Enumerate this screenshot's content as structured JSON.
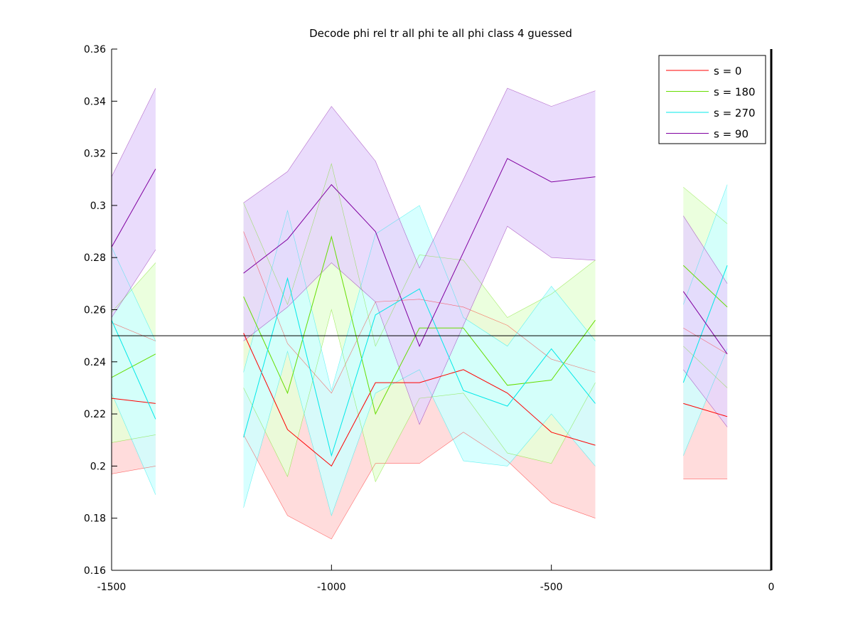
{
  "chart_data": {
    "type": "line",
    "title": "Decode phi rel tr all phi te all phi class 4 guessed",
    "xlabel": "",
    "ylabel": "",
    "xlim": [
      -1500,
      0
    ],
    "ylim": [
      0.16,
      0.36
    ],
    "x_ticks": [
      -1500,
      -1000,
      -500,
      0
    ],
    "x_tick_labels": [
      "-1500",
      "-1000",
      "-500",
      "0"
    ],
    "y_ticks": [
      0.16,
      0.18,
      0.2,
      0.22,
      0.24,
      0.26,
      0.28,
      0.3,
      0.32,
      0.34,
      0.36
    ],
    "y_tick_labels": [
      "0.16",
      "0.18",
      "0.2",
      "0.22",
      "0.24",
      "0.26",
      "0.28",
      "0.3",
      "0.32",
      "0.34",
      "0.36"
    ],
    "grid": false,
    "legend_position": "top-right",
    "reference_line": {
      "y": 0.25,
      "color": "#000000"
    },
    "right_axis_line_x": 0,
    "series": [
      {
        "name": "s = 0",
        "color": "#ff0000",
        "band_color": "#ffd6d6",
        "segments": [
          {
            "x": [
              -1500,
              -1400
            ],
            "mean": [
              0.226,
              0.224
            ],
            "lower": [
              0.197,
              0.2
            ],
            "upper": [
              0.255,
              0.248
            ]
          },
          {
            "x": [
              -1200,
              -1100,
              -1000,
              -900,
              -800,
              -700,
              -600,
              -500,
              -400
            ],
            "mean": [
              0.251,
              0.214,
              0.2,
              0.232,
              0.232,
              0.237,
              0.228,
              0.213,
              0.208
            ],
            "lower": [
              0.212,
              0.181,
              0.172,
              0.201,
              0.201,
              0.213,
              0.202,
              0.186,
              0.18
            ],
            "upper": [
              0.29,
              0.247,
              0.228,
              0.263,
              0.264,
              0.261,
              0.254,
              0.241,
              0.236
            ]
          },
          {
            "x": [
              -200,
              -100
            ],
            "mean": [
              0.224,
              0.219
            ],
            "lower": [
              0.195,
              0.195
            ],
            "upper": [
              0.253,
              0.243
            ]
          }
        ]
      },
      {
        "name": "s = 180",
        "color": "#66dd00",
        "band_color": "#e8ffd8",
        "segments": [
          {
            "x": [
              -1500,
              -1400
            ],
            "mean": [
              0.234,
              0.243
            ],
            "lower": [
              0.209,
              0.212
            ],
            "upper": [
              0.259,
              0.278
            ]
          },
          {
            "x": [
              -1200,
              -1100,
              -1000,
              -900,
              -800,
              -700,
              -600,
              -500,
              -400
            ],
            "mean": [
              0.265,
              0.228,
              0.288,
              0.22,
              0.253,
              0.253,
              0.231,
              0.233,
              0.256
            ],
            "lower": [
              0.23,
              0.196,
              0.26,
              0.194,
              0.226,
              0.228,
              0.205,
              0.201,
              0.232
            ],
            "upper": [
              0.301,
              0.262,
              0.316,
              0.246,
              0.281,
              0.279,
              0.257,
              0.266,
              0.279
            ]
          },
          {
            "x": [
              -200,
              -100
            ],
            "mean": [
              0.277,
              0.261
            ],
            "lower": [
              0.246,
              0.23
            ],
            "upper": [
              0.307,
              0.293
            ]
          }
        ]
      },
      {
        "name": "s = 270",
        "color": "#00e8e8",
        "band_color": "#d0ffff",
        "segments": [
          {
            "x": [
              -1500,
              -1400
            ],
            "mean": [
              0.256,
              0.218
            ],
            "lower": [
              0.228,
              0.189
            ],
            "upper": [
              0.284,
              0.248
            ]
          },
          {
            "x": [
              -1200,
              -1100,
              -1000,
              -900,
              -800,
              -700,
              -600,
              -500,
              -400
            ],
            "mean": [
              0.211,
              0.272,
              0.204,
              0.258,
              0.268,
              0.229,
              0.223,
              0.245,
              0.224
            ],
            "lower": [
              0.184,
              0.244,
              0.181,
              0.228,
              0.237,
              0.202,
              0.2,
              0.22,
              0.2
            ],
            "upper": [
              0.236,
              0.298,
              0.229,
              0.289,
              0.3,
              0.257,
              0.246,
              0.269,
              0.248
            ]
          },
          {
            "x": [
              -200,
              -100
            ],
            "mean": [
              0.232,
              0.277
            ],
            "lower": [
              0.204,
              0.245
            ],
            "upper": [
              0.262,
              0.308
            ]
          }
        ]
      },
      {
        "name": "s = 90",
        "color": "#8000a0",
        "band_color": "#e6d6fb",
        "segments": [
          {
            "x": [
              -1500,
              -1400
            ],
            "mean": [
              0.284,
              0.314
            ],
            "lower": [
              0.257,
              0.283
            ],
            "upper": [
              0.311,
              0.345
            ]
          },
          {
            "x": [
              -1200,
              -1100,
              -1000,
              -900,
              -800,
              -700,
              -600,
              -500,
              -400
            ],
            "mean": [
              0.274,
              0.287,
              0.308,
              0.29,
              0.246,
              0.282,
              0.318,
              0.309,
              0.311
            ],
            "lower": [
              0.248,
              0.261,
              0.278,
              0.263,
              0.216,
              0.254,
              0.292,
              0.28,
              0.279
            ],
            "upper": [
              0.301,
              0.313,
              0.338,
              0.317,
              0.276,
              0.31,
              0.345,
              0.338,
              0.344
            ]
          },
          {
            "x": [
              -200,
              -100
            ],
            "mean": [
              0.267,
              0.243
            ],
            "lower": [
              0.237,
              0.215
            ],
            "upper": [
              0.296,
              0.27
            ]
          }
        ]
      }
    ]
  }
}
